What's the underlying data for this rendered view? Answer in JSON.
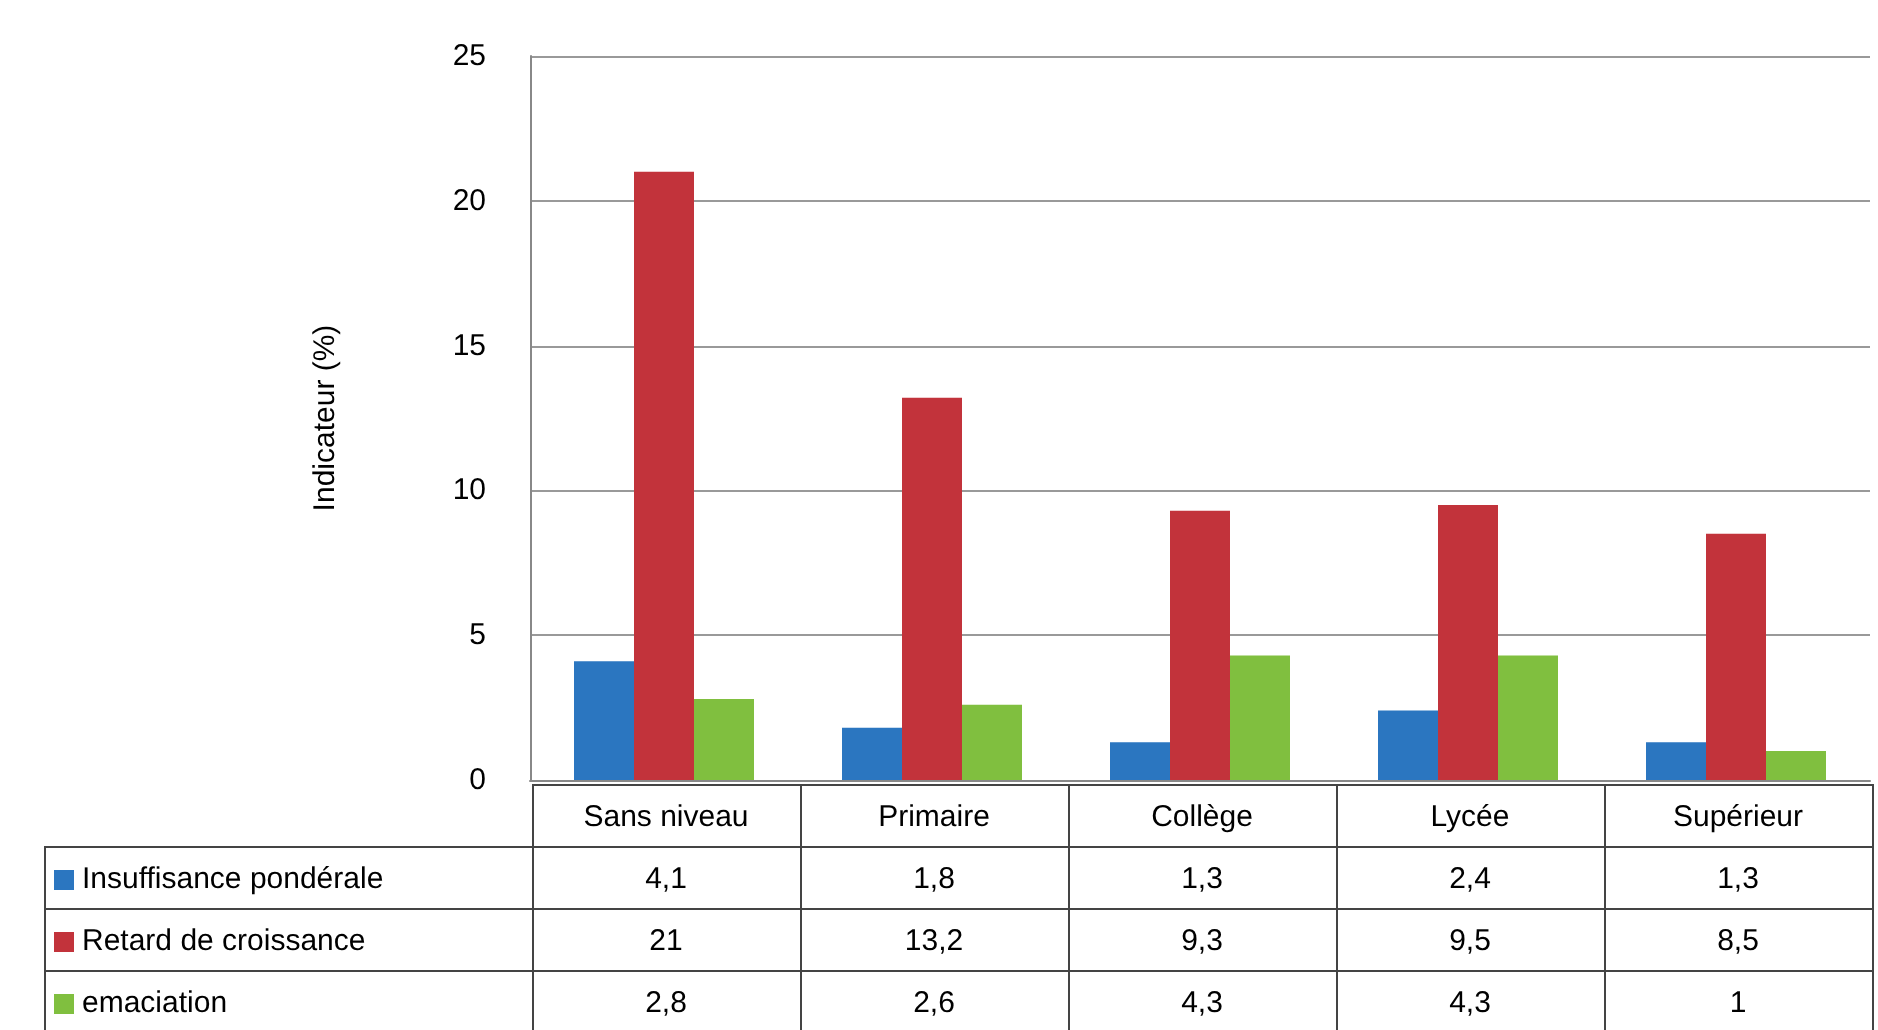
{
  "chart_data": {
    "type": "bar",
    "ylabel": "Indicateur (%)",
    "categories": [
      "Sans niveau",
      "Primaire",
      "Collège",
      "Lycée",
      "Supérieur"
    ],
    "series": [
      {
        "name": "Insuffisance pondérale",
        "color": "#2b76c0",
        "values": [
          4.1,
          1.8,
          1.3,
          2.4,
          1.3
        ],
        "value_labels": [
          "4,1",
          "1,8",
          "1,3",
          "2,4",
          "1,3"
        ]
      },
      {
        "name": "Retard de croissance",
        "color": "#c2333b",
        "values": [
          21,
          13.2,
          9.3,
          9.5,
          8.5
        ],
        "value_labels": [
          "21",
          "13,2",
          "9,3",
          "9,5",
          "8,5"
        ]
      },
      {
        "name": "emaciation",
        "color": "#80bf3f",
        "values": [
          2.8,
          2.6,
          4.3,
          4.3,
          1
        ],
        "value_labels": [
          "2,8",
          "2,6",
          "4,3",
          "4,3",
          "1"
        ]
      }
    ],
    "ylim": [
      0,
      25
    ],
    "yticks": [
      0,
      5,
      10,
      15,
      20,
      25
    ],
    "grid": "y",
    "legend": "bottom left"
  }
}
